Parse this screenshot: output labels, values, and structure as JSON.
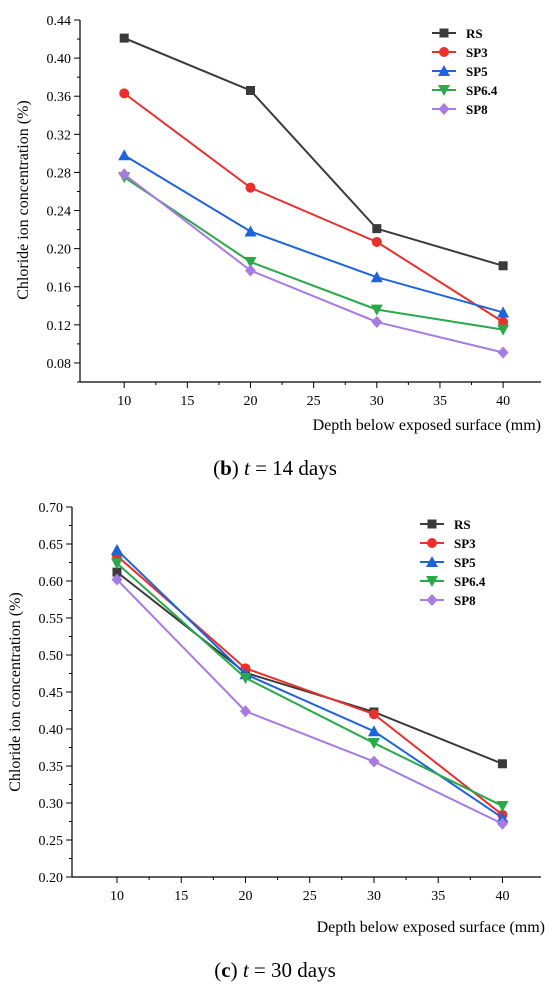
{
  "chart_data": [
    {
      "type": "line",
      "xlabel": "Depth below exposed surface (mm)",
      "ylabel": "Chloride ion concentration (%)",
      "caption": {
        "letter": "b",
        "t": "t",
        "rest": " = 14 days"
      },
      "xlim": [
        6.5,
        43
      ],
      "ylim": [
        0.06,
        0.44
      ],
      "xticks": [
        10,
        15,
        20,
        25,
        30,
        35,
        40
      ],
      "yticks": [
        0.08,
        0.12,
        0.16,
        0.2,
        0.24,
        0.28,
        0.32,
        0.36,
        0.4,
        0.44
      ],
      "ytick_labels": [
        "0.08",
        "0.12",
        "0.16",
        "0.20",
        "0.24",
        "0.28",
        "0.32",
        "0.36",
        "0.40",
        "0.44"
      ],
      "x": [
        10,
        20,
        30,
        40
      ],
      "legend_position": "top-right",
      "grid": false,
      "series": [
        {
          "name": "RS",
          "color": "#3a3a3a",
          "marker": "square",
          "values": [
            0.421,
            0.366,
            0.221,
            0.182
          ]
        },
        {
          "name": "SP3",
          "color": "#e8302c",
          "marker": "circle",
          "values": [
            0.363,
            0.264,
            0.207,
            0.123
          ]
        },
        {
          "name": "SP5",
          "color": "#1f63dc",
          "marker": "triangle-up",
          "values": [
            0.298,
            0.218,
            0.17,
            0.133
          ]
        },
        {
          "name": "SP6.4",
          "color": "#2aa84a",
          "marker": "triangle-down",
          "values": [
            0.275,
            0.186,
            0.136,
            0.115
          ]
        },
        {
          "name": "SP8",
          "color": "#a77be0",
          "marker": "diamond",
          "values": [
            0.278,
            0.177,
            0.123,
            0.091
          ]
        }
      ]
    },
    {
      "type": "line",
      "xlabel": "Depth below exposed surface (mm)",
      "ylabel": "Chloride ion concentration (%)",
      "caption": {
        "letter": "c",
        "t": "t",
        "rest": " = 30 days"
      },
      "xlim": [
        6.5,
        43
      ],
      "ylim": [
        0.2,
        0.7
      ],
      "xticks": [
        10,
        15,
        20,
        25,
        30,
        35,
        40
      ],
      "yticks": [
        0.2,
        0.25,
        0.3,
        0.35,
        0.4,
        0.45,
        0.5,
        0.55,
        0.6,
        0.65,
        0.7
      ],
      "ytick_labels": [
        "0.20",
        "0.25",
        "0.30",
        "0.35",
        "0.40",
        "0.45",
        "0.50",
        "0.55",
        "0.60",
        "0.65",
        "0.70"
      ],
      "x": [
        10,
        20,
        30,
        40
      ],
      "legend_position": "top-right",
      "grid": false,
      "series": [
        {
          "name": "RS",
          "color": "#3a3a3a",
          "marker": "square",
          "values": [
            0.612,
            0.476,
            0.423,
            0.353
          ]
        },
        {
          "name": "SP3",
          "color": "#e8302c",
          "marker": "circle",
          "values": [
            0.634,
            0.482,
            0.42,
            0.284
          ]
        },
        {
          "name": "SP5",
          "color": "#1f63dc",
          "marker": "triangle-up",
          "values": [
            0.642,
            0.474,
            0.397,
            0.28
          ]
        },
        {
          "name": "SP6.4",
          "color": "#2aa84a",
          "marker": "triangle-down",
          "values": [
            0.624,
            0.469,
            0.381,
            0.296
          ]
        },
        {
          "name": "SP8",
          "color": "#a77be0",
          "marker": "diamond",
          "values": [
            0.602,
            0.424,
            0.356,
            0.272
          ]
        }
      ]
    }
  ]
}
